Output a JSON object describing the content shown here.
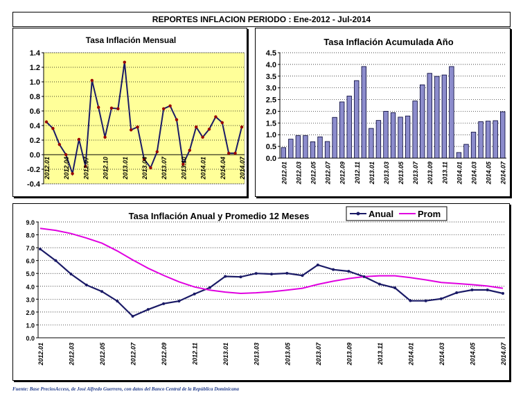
{
  "header": {
    "title": "REPORTES INFLACION PERIODO : Ene-2012 - Jul-2014"
  },
  "footer": {
    "source": "Fuente: Base PreciosAccess, de José Alfredo Guerrero, con datos del Banco Central de la República Dominicana"
  },
  "colors": {
    "plot_bg": "#ffff99",
    "line_dark": "#1a1a66",
    "marker": "#990000",
    "bar_fill": "#8c8ccc",
    "prom_line": "#e000e0"
  },
  "chart_data": [
    {
      "type": "line",
      "title": "Tasa Inflación Mensual",
      "x": [
        "2012.01",
        "2012.02",
        "2012.03",
        "2012.04",
        "2012.05",
        "2012.06",
        "2012.07",
        "2012.08",
        "2012.09",
        "2012.10",
        "2012.11",
        "2012.12",
        "2013.01",
        "2013.02",
        "2013.03",
        "2013.04",
        "2013.05",
        "2013.06",
        "2013.07",
        "2013.08",
        "2013.09",
        "2013.10",
        "2013.11",
        "2013.12",
        "2014.01",
        "2014.02",
        "2014.03",
        "2014.04",
        "2014.05",
        "2014.06",
        "2014.07"
      ],
      "x_tick_labels": [
        "2012.01",
        "2012.04",
        "2012.07",
        "2012.10",
        "2013.01",
        "2013.04",
        "2013.07",
        "2013.10",
        "2014.01",
        "2014.04",
        "2014.07"
      ],
      "y_tick_labels": [
        "1.4",
        "1.2",
        "1.0",
        "0.8",
        "0.6",
        "0.4",
        "0.2",
        "0.0",
        "-0.2",
        "-0.4"
      ],
      "series": [
        {
          "values": [
            0.45,
            0.36,
            0.14,
            0.0,
            -0.26,
            0.21,
            -0.16,
            1.02,
            0.65,
            0.24,
            0.64,
            0.63,
            1.27,
            0.34,
            0.38,
            -0.06,
            -0.18,
            0.04,
            0.63,
            0.67,
            0.48,
            -0.13,
            0.06,
            0.38,
            0.24,
            0.35,
            0.52,
            0.44,
            0.02,
            0.02,
            0.38
          ]
        }
      ],
      "ylim": [
        -0.4,
        1.4
      ],
      "grid": "horizontal dotted"
    },
    {
      "type": "bar",
      "title": "Tasa Inflación Acumulada Año",
      "categories": [
        "2012.01",
        "2012.02",
        "2012.03",
        "2012.04",
        "2012.05",
        "2012.06",
        "2012.07",
        "2012.08",
        "2012.09",
        "2012.10",
        "2012.11",
        "2012.12",
        "2013.01",
        "2013.02",
        "2013.03",
        "2013.04",
        "2013.05",
        "2013.06",
        "2013.07",
        "2013.08",
        "2013.09",
        "2013.10",
        "2013.11",
        "2013.12",
        "2014.01",
        "2014.02",
        "2014.03",
        "2014.04",
        "2014.05",
        "2014.06",
        "2014.07"
      ],
      "x_tick_labels": [
        "2012.01",
        "2012.03",
        "2012.05",
        "2012.07",
        "2012.09",
        "2012.11",
        "2013.01",
        "2013.03",
        "2013.05",
        "2013.07",
        "2013.09",
        "2013.11",
        "2014.01",
        "2014.03",
        "2014.05",
        "2014.07"
      ],
      "y_tick_labels": [
        "4.5",
        "4.0",
        "3.5",
        "3.0",
        "2.5",
        "2.0",
        "1.5",
        "1.0",
        "0.5",
        "0.0"
      ],
      "values": [
        0.45,
        0.81,
        0.96,
        0.96,
        0.7,
        0.91,
        0.71,
        1.74,
        2.4,
        2.65,
        3.31,
        3.91,
        1.27,
        1.61,
        2.0,
        1.94,
        1.75,
        1.8,
        2.44,
        3.13,
        3.62,
        3.49,
        3.55,
        3.91,
        0.24,
        0.59,
        1.11,
        1.56,
        1.58,
        1.6,
        1.98
      ],
      "ylim": [
        0,
        4.5
      ],
      "grid": "horizontal dotted"
    },
    {
      "type": "line",
      "title": "Tasa Inflación Anual y Promedio 12 Meses",
      "x": [
        "2012.01",
        "2012.02",
        "2012.03",
        "2012.04",
        "2012.05",
        "2012.06",
        "2012.07",
        "2012.08",
        "2012.09",
        "2012.10",
        "2012.11",
        "2012.12",
        "2013.01",
        "2013.02",
        "2013.03",
        "2013.04",
        "2013.05",
        "2013.06",
        "2013.07",
        "2013.08",
        "2013.09",
        "2013.10",
        "2013.11",
        "2013.12",
        "2014.01",
        "2014.02",
        "2014.03",
        "2014.04",
        "2014.05",
        "2014.06",
        "2014.07"
      ],
      "x_tick_labels": [
        "2012.01",
        "2012.03",
        "2012.05",
        "2012.07",
        "2012.09",
        "2012.11",
        "2013.01",
        "2013.03",
        "2013.05",
        "2013.07",
        "2013.09",
        "2013.11",
        "2014.01",
        "2014.03",
        "2014.05",
        "2014.07"
      ],
      "y_tick_labels": [
        "9.0",
        "8.0",
        "7.0",
        "6.0",
        "5.0",
        "4.0",
        "3.0",
        "2.0",
        "1.0",
        "0.0"
      ],
      "series": [
        {
          "name": "Anual",
          "values": [
            6.9,
            6.0,
            4.95,
            4.1,
            3.6,
            2.85,
            1.67,
            2.2,
            2.65,
            2.85,
            3.4,
            3.9,
            4.77,
            4.73,
            5.0,
            4.95,
            5.01,
            4.84,
            5.66,
            5.3,
            5.17,
            4.75,
            4.17,
            3.88,
            2.88,
            2.87,
            3.03,
            3.5,
            3.72,
            3.72,
            3.45
          ]
        },
        {
          "name": "Prom",
          "values": [
            8.5,
            8.35,
            8.1,
            7.75,
            7.35,
            6.75,
            6.05,
            5.4,
            4.85,
            4.35,
            3.95,
            3.7,
            3.55,
            3.45,
            3.5,
            3.58,
            3.7,
            3.85,
            4.15,
            4.4,
            4.6,
            4.75,
            4.82,
            4.82,
            4.68,
            4.5,
            4.3,
            4.22,
            4.13,
            4.02,
            3.85
          ]
        }
      ],
      "ylim": [
        0,
        9.0
      ],
      "legend": "top-right",
      "grid": "horizontal dotted"
    }
  ]
}
